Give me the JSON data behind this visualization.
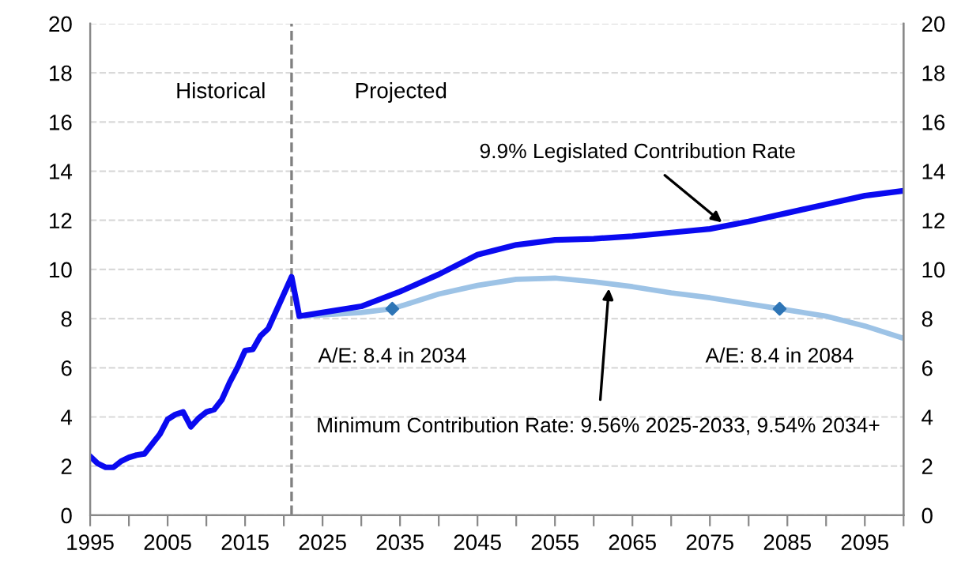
{
  "chart_data": {
    "type": "line",
    "xlim": [
      1995,
      2100
    ],
    "xticks": [
      1995,
      {
        "value": 2000,
        "label": null
      },
      2005,
      {
        "value": 2010,
        "label": null
      },
      2015,
      {
        "value": 2020,
        "label": null
      },
      2025,
      {
        "value": 2030,
        "label": null
      },
      2035,
      {
        "value": 2040,
        "label": null
      },
      2045,
      {
        "value": 2050,
        "label": null
      },
      2055,
      {
        "value": 2060,
        "label": null
      },
      2065,
      {
        "value": 2070,
        "label": null
      },
      2075,
      {
        "value": 2080,
        "label": null
      },
      2085,
      {
        "value": 2090,
        "label": null
      },
      2095,
      {
        "value": 2100,
        "label": null
      }
    ],
    "ylim": [
      0,
      20
    ],
    "yticks": [
      0,
      2,
      4,
      6,
      8,
      10,
      12,
      14,
      16,
      18,
      20
    ],
    "y2lim": [
      0,
      20
    ],
    "y2ticks": [
      0,
      2,
      4,
      6,
      8,
      10,
      12,
      14,
      16,
      18,
      20
    ],
    "grid": "y",
    "line_style": "solid",
    "marker": "none",
    "series": [
      {
        "color": "#0a0af0",
        "x": [
          1995,
          1996,
          1997,
          1998,
          1999,
          2000,
          2001,
          2002,
          2003,
          2004,
          2005,
          2006,
          2007,
          2008,
          2009,
          2010,
          2011,
          2012,
          2013,
          2014,
          2015,
          2016,
          2017,
          2018,
          2019,
          2020,
          2021,
          2022,
          2025,
          2030,
          2035,
          2040,
          2045,
          2050,
          2055,
          2060,
          2065,
          2070,
          2075,
          2080,
          2085,
          2090,
          2095,
          2100
        ],
        "values": [
          2.4,
          2.1,
          1.95,
          1.95,
          2.2,
          2.35,
          2.45,
          2.5,
          2.9,
          3.3,
          3.9,
          4.1,
          4.2,
          3.6,
          3.95,
          4.2,
          4.3,
          4.7,
          5.4,
          6.0,
          6.7,
          6.75,
          7.3,
          7.6,
          8.3,
          9.0,
          9.7,
          8.1,
          8.25,
          8.5,
          9.1,
          9.8,
          10.6,
          11.0,
          11.2,
          11.25,
          11.35,
          11.5,
          11.65,
          11.95,
          12.3,
          12.65,
          13.0,
          13.2
        ]
      },
      {
        "color": "#9dc3e6",
        "x": [
          2022,
          2025,
          2030,
          2034,
          2040,
          2045,
          2050,
          2055,
          2060,
          2065,
          2070,
          2075,
          2080,
          2084,
          2090,
          2095,
          2100
        ],
        "values": [
          8.1,
          8.15,
          8.25,
          8.4,
          9.0,
          9.35,
          9.6,
          9.65,
          9.5,
          9.3,
          9.05,
          8.85,
          8.6,
          8.4,
          8.1,
          7.7,
          7.2
        ]
      },
      {
        "type": "scatter",
        "marker": "diamond",
        "color": "#2e75b6",
        "x": [
          2034,
          2084
        ],
        "values": [
          8.4,
          8.4
        ]
      }
    ],
    "ref_lines": [
      {
        "axis": "x",
        "value": 2021,
        "color": "#808080",
        "line_style": "dashed"
      }
    ],
    "annotations": [
      "Historical",
      "Projected",
      {
        "text": "A/E: 8.4 in 2034",
        "x": 2034,
        "y": 8.4
      },
      {
        "text": "A/E: 8.4 in 2084",
        "x": 2084,
        "y": 8.4
      },
      {
        "text": "9.9% Legislated Contribution Rate",
        "x": 2077,
        "y": 11.8
      },
      {
        "text": "Minimum Contribution Rate: 9.56% 2025-2033, 9.54% 2034+",
        "x": 2062,
        "y": 9.4
      }
    ]
  }
}
